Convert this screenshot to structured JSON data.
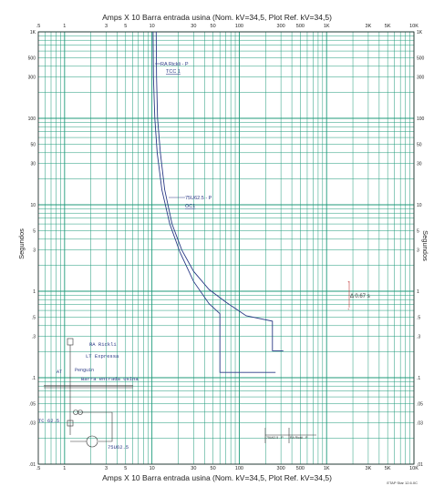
{
  "chart_data": {
    "type": "line",
    "title": "Amps  X 10   Barra entrada usina (Nom. kV=34,5, Plot Ref. kV=34,5)",
    "ylabel": "Segundos",
    "x_scale": "log",
    "y_scale": "log",
    "xlim": [
      0.5,
      10000
    ],
    "ylim": [
      0.01,
      1000
    ],
    "grid": true,
    "x_ticks": [
      ".5",
      "1",
      "3",
      "5",
      "10",
      "30",
      "50",
      "100",
      "300",
      "500",
      "1K",
      "3K",
      "5K",
      "10K"
    ],
    "y_ticks": [
      "1K",
      "500",
      "300",
      "100",
      "50",
      "30",
      "10",
      "5",
      "3",
      "1",
      ".5",
      ".3",
      ".1",
      ".05",
      ".03",
      ".01"
    ],
    "series": [
      {
        "name": "RA Rickli - P",
        "sublabel": "TCC 1",
        "color": "#2b3a86",
        "points": [
          [
            11.2,
            1000
          ],
          [
            11.3,
            300
          ],
          [
            11.6,
            100
          ],
          [
            12.5,
            40
          ],
          [
            14,
            15
          ],
          [
            17,
            6
          ],
          [
            22,
            3
          ],
          [
            30,
            1.7
          ],
          [
            45,
            1.05
          ],
          [
            70,
            0.75
          ],
          [
            120,
            0.52
          ],
          [
            240,
            0.45
          ],
          [
            240,
            0.205
          ],
          [
            320,
            0.205
          ]
        ]
      },
      {
        "name": "75U62.5 - P",
        "sublabel": "OC1",
        "color": "#2b3a86",
        "points": [
          [
            10.3,
            1000
          ],
          [
            10.4,
            300
          ],
          [
            10.8,
            100
          ],
          [
            11.5,
            40
          ],
          [
            13,
            15
          ],
          [
            16,
            6
          ],
          [
            21,
            2.8
          ],
          [
            30,
            1.3
          ],
          [
            45,
            0.72
          ],
          [
            60,
            0.55
          ],
          [
            60,
            0.115
          ],
          [
            260,
            0.115
          ]
        ]
      }
    ],
    "annotations": {
      "delta_time": "Δ 0.67 s",
      "one_line": {
        "nodes": [
          "RA Rickli",
          "LT Expressa",
          "AT",
          "Penguin",
          "Barra entrada usina",
          "TC 62.5",
          "75U62.5"
        ]
      },
      "bottom_labels": [
        "RA Rickli - P",
        "75U62.5 - P"
      ]
    }
  },
  "footer": "ETAP Star 12.6.0C"
}
